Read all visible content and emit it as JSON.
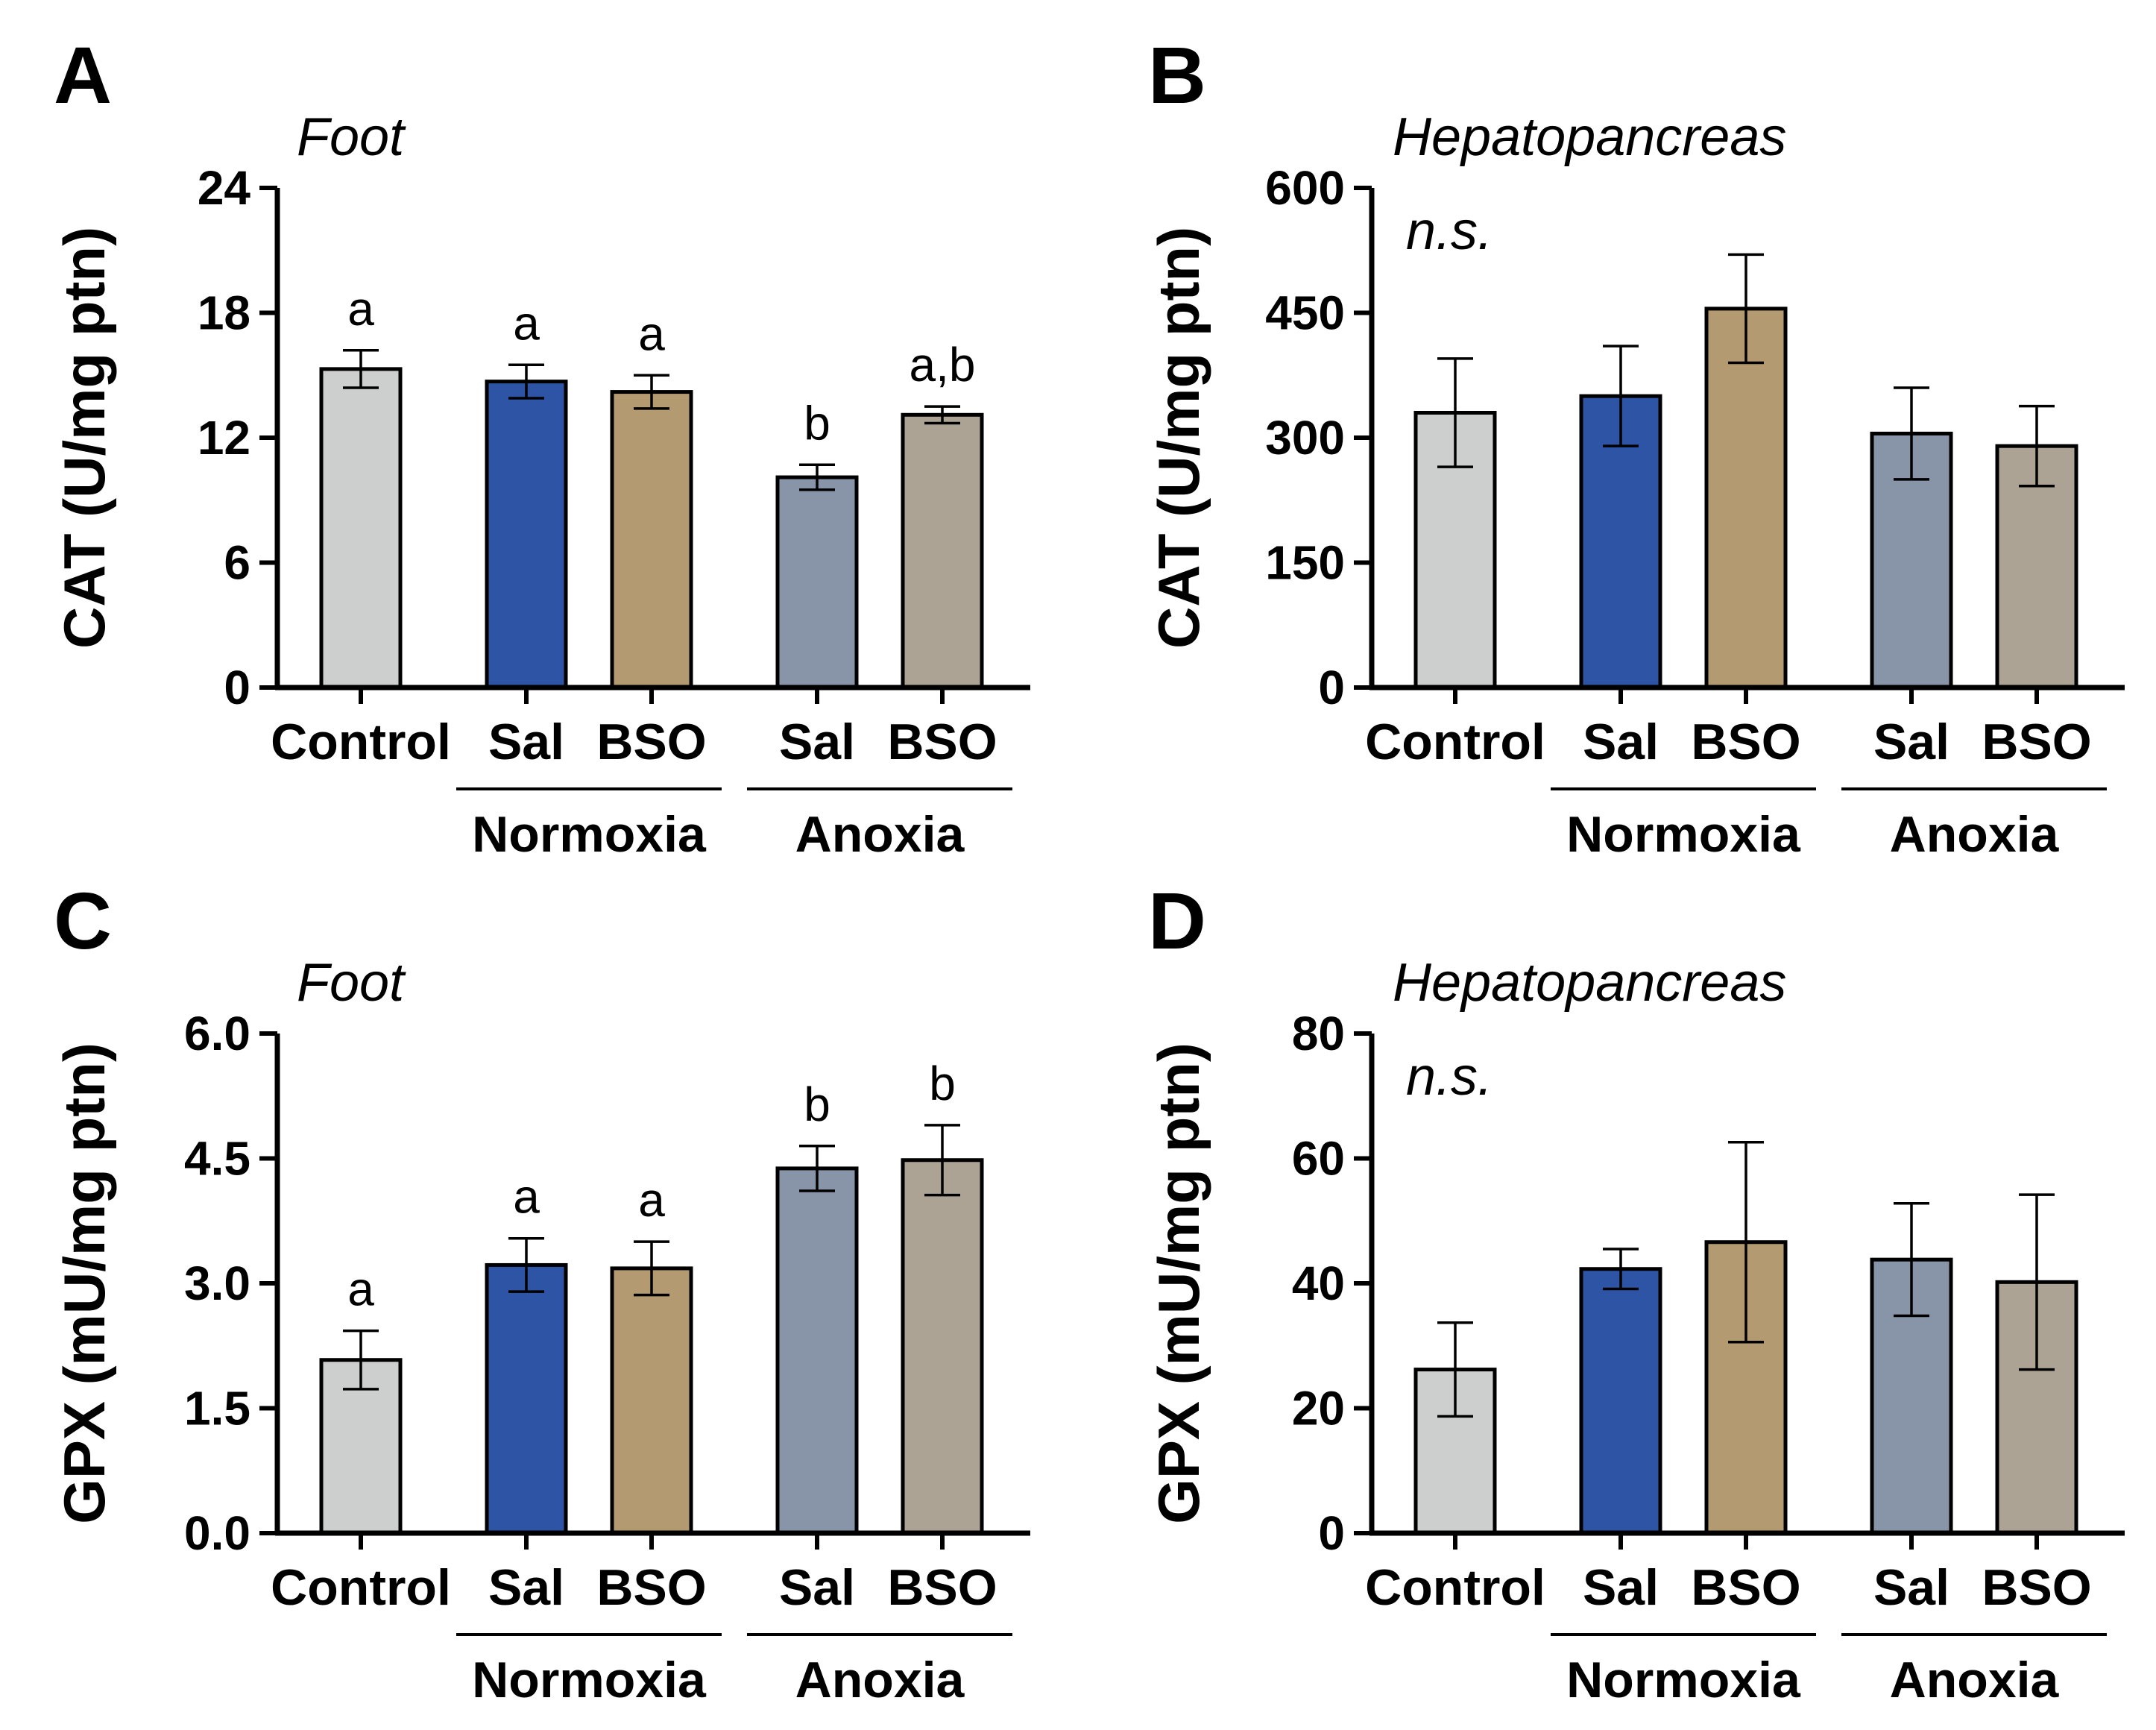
{
  "colors": {
    "Control": "#cdcfce",
    "Normoxia Sal": "#2e55a5",
    "Normoxia BSO": "#b39a70",
    "Anoxia Sal": "#8895a8",
    "Anoxia BSO": "#aca395",
    "axis": "#000000"
  },
  "chart_data": [
    {
      "panel": "A",
      "type": "bar",
      "title": "Foot",
      "ylabel": "CAT (U/mg ptn)",
      "ylim": [
        0,
        24
      ],
      "yticks": [
        "0",
        "6",
        "12",
        "18",
        "24"
      ],
      "categories": [
        "Control",
        "Sal",
        "BSO",
        "Sal",
        "BSO"
      ],
      "groups": [
        {
          "label": "Normoxia",
          "members": [
            1,
            2
          ]
        },
        {
          "label": "Anoxia",
          "members": [
            3,
            4
          ]
        }
      ],
      "values": [
        15.3,
        14.7,
        14.2,
        10.1,
        13.1
      ],
      "errors": [
        0.9,
        0.8,
        0.8,
        0.6,
        0.4
      ],
      "annotations": [
        "a",
        "a",
        "a",
        "b",
        "a,b"
      ],
      "note": ""
    },
    {
      "panel": "B",
      "type": "bar",
      "title": "Hepatopancreas",
      "ylabel": "CAT (U/mg ptn)",
      "ylim": [
        0,
        600
      ],
      "yticks": [
        "0",
        "150",
        "300",
        "450",
        "600"
      ],
      "categories": [
        "Control",
        "Sal",
        "BSO",
        "Sal",
        "BSO"
      ],
      "groups": [
        {
          "label": "Normoxia",
          "members": [
            1,
            2
          ]
        },
        {
          "label": "Anoxia",
          "members": [
            3,
            4
          ]
        }
      ],
      "values": [
        330,
        350,
        455,
        305,
        290
      ],
      "errors": [
        65,
        60,
        65,
        55,
        48
      ],
      "annotations": [
        "",
        "",
        "",
        "",
        ""
      ],
      "note": "n.s."
    },
    {
      "panel": "C",
      "type": "bar",
      "title": "Foot",
      "ylabel": "GPX (mU/mg ptn)",
      "ylim": [
        0,
        6
      ],
      "yticks": [
        "0.0",
        "1.5",
        "3.0",
        "4.5",
        "6.0"
      ],
      "categories": [
        "Control",
        "Sal",
        "BSO",
        "Sal",
        "BSO"
      ],
      "groups": [
        {
          "label": "Normoxia",
          "members": [
            1,
            2
          ]
        },
        {
          "label": "Anoxia",
          "members": [
            3,
            4
          ]
        }
      ],
      "values": [
        2.08,
        3.22,
        3.18,
        4.38,
        4.48
      ],
      "errors": [
        0.35,
        0.32,
        0.32,
        0.27,
        0.42
      ],
      "annotations": [
        "a",
        "a",
        "a",
        "b",
        "b"
      ],
      "note": ""
    },
    {
      "panel": "D",
      "type": "bar",
      "title": "Hepatopancreas",
      "ylabel": "GPX (mU/mg ptn)",
      "ylim": [
        0,
        80
      ],
      "yticks": [
        "0",
        "20",
        "40",
        "60",
        "80"
      ],
      "categories": [
        "Control",
        "Sal",
        "BSO",
        "Sal",
        "BSO"
      ],
      "groups": [
        {
          "label": "Normoxia",
          "members": [
            1,
            2
          ]
        },
        {
          "label": "Anoxia",
          "members": [
            3,
            4
          ]
        }
      ],
      "values": [
        26.2,
        42.3,
        46.6,
        43.8,
        40.2
      ],
      "errors": [
        7.5,
        3.2,
        16.0,
        9.0,
        14.0
      ],
      "annotations": [
        "",
        "",
        "",
        "",
        ""
      ],
      "note": "n.s."
    }
  ]
}
